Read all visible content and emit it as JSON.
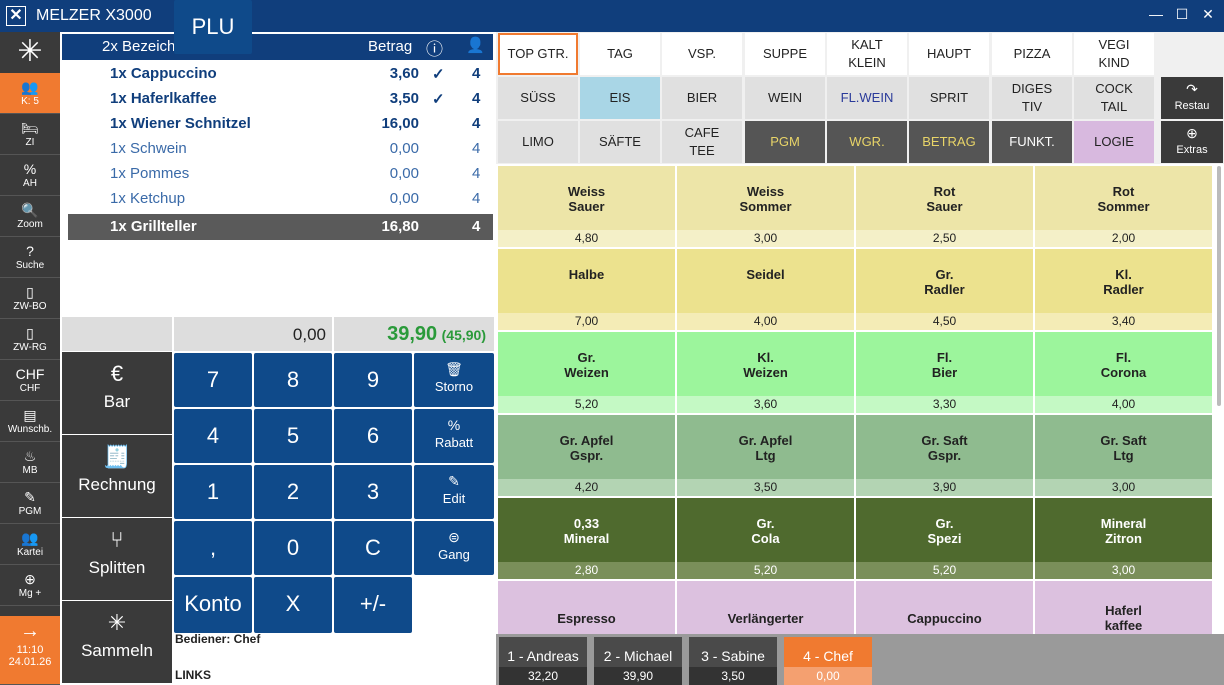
{
  "app": {
    "title": "MELZER X3000",
    "min": "—",
    "max": "☐",
    "close": "✕"
  },
  "sidebar": [
    {
      "icon": "👥",
      "label": "K: 5"
    },
    {
      "icon": "🛏",
      "label": "ZI"
    },
    {
      "icon": "%",
      "label": "AH"
    },
    {
      "icon": "🔍",
      "label": "Zoom"
    },
    {
      "icon": "?",
      "label": "Suche"
    },
    {
      "icon": "▯",
      "label": "ZW-BO"
    },
    {
      "icon": "▯",
      "label": "ZW-RG"
    },
    {
      "icon": "CHF",
      "label": "CHF"
    },
    {
      "icon": "▤",
      "label": "Wunschb."
    },
    {
      "icon": "♨",
      "label": "MB"
    },
    {
      "icon": "✎",
      "label": "PGM"
    },
    {
      "icon": "👥",
      "label": "Kartei"
    },
    {
      "icon": "⊕",
      "label": "Mg +"
    }
  ],
  "clock": {
    "time": "11:10",
    "date": "24.01.26",
    "icon": "→"
  },
  "order": {
    "header": {
      "name": "2x Bezeichnung",
      "amount": "Betrag",
      "info": "ⓘ",
      "person": "👤"
    },
    "rows": [
      {
        "name": "1x Cappuccino",
        "price": "3,60",
        "check": "✓",
        "seat": "4"
      },
      {
        "name": "1x Haferlkaffee",
        "price": "3,50",
        "check": "✓",
        "seat": "4"
      },
      {
        "name": "1x Wiener Schnitzel",
        "price": "16,00",
        "check": "",
        "seat": "4"
      },
      {
        "name": "1x Schwein",
        "price": "0,00",
        "check": "",
        "seat": "4"
      },
      {
        "name": "1x Pommes",
        "price": "0,00",
        "check": "",
        "seat": "4"
      },
      {
        "name": "1x Ketchup",
        "price": "0,00",
        "check": "",
        "seat": "4"
      },
      {
        "name": "1x Grillteller",
        "price": "16,80",
        "check": "",
        "seat": "4"
      }
    ]
  },
  "display": {
    "input": "0,00",
    "total": "39,90",
    "subtotal": "(45,90)"
  },
  "pay": [
    {
      "icon": "€",
      "label": "Bar"
    },
    {
      "icon": "🧾",
      "label": "Rechnung"
    },
    {
      "icon": "⑂",
      "label": "Splitten"
    },
    {
      "icon": "✳",
      "label": "Sammeln"
    }
  ],
  "keys": [
    "7",
    "8",
    "9",
    "4",
    "5",
    "6",
    "1",
    "2",
    "3",
    ",",
    "0",
    "C",
    "Konto",
    "X",
    "+/-",
    "PLU"
  ],
  "side_keys": [
    {
      "icon": "🗑",
      "label": "Storno"
    },
    {
      "icon": "%",
      "label": "Rabatt"
    },
    {
      "icon": "✎",
      "label": "Edit"
    },
    {
      "icon": "⊜",
      "label": "Gang"
    }
  ],
  "footer": {
    "bediener": "Bediener: Chef",
    "links": "LINKS"
  },
  "tabs": [
    [
      "TOP GTR.",
      "TAG",
      "VSP.",
      "SUPPE",
      "KALT\nKLEIN",
      "HAUPT",
      "PIZZA",
      "VEGI\nKIND"
    ],
    [
      "SÜSS",
      "EIS",
      "BIER",
      "WEIN",
      "FL.WEIN",
      "SPRIT",
      "DIGES\nTIV",
      "COCK\nTAIL"
    ],
    [
      "LIMO",
      "SÄFTE",
      "CAFE\nTEE",
      "PGM",
      "WGR.",
      "BETRAG",
      "FUNKT.",
      "LOGIE"
    ]
  ],
  "right_buttons": [
    {
      "icon": "↷",
      "label": "Restau"
    },
    {
      "icon": "⊕",
      "label": "Extras"
    }
  ],
  "products": [
    [
      {
        "n": "Weiss\nSauer",
        "p": "4,80"
      },
      {
        "n": "Weiss\nSommer",
        "p": "3,00"
      },
      {
        "n": "Rot\nSauer",
        "p": "2,50"
      },
      {
        "n": "Rot\nSommer",
        "p": "2,00"
      }
    ],
    [
      {
        "n": "Halbe",
        "p": "7,00"
      },
      {
        "n": "Seidel",
        "p": "4,00"
      },
      {
        "n": "Gr.\nRadler",
        "p": "4,50"
      },
      {
        "n": "Kl.\nRadler",
        "p": "3,40"
      }
    ],
    [
      {
        "n": "Gr.\nWeizen",
        "p": "5,20"
      },
      {
        "n": "Kl.\nWeizen",
        "p": "3,60"
      },
      {
        "n": "Fl.\nBier",
        "p": "3,30"
      },
      {
        "n": "Fl.\nCorona",
        "p": "4,00"
      }
    ],
    [
      {
        "n": "Gr. Apfel\nGspr.",
        "p": "4,20"
      },
      {
        "n": "Gr. Apfel\nLtg",
        "p": "3,50"
      },
      {
        "n": "Gr. Saft\nGspr.",
        "p": "3,90"
      },
      {
        "n": "Gr. Saft\nLtg",
        "p": "3,00"
      }
    ],
    [
      {
        "n": "0,33\nMineral",
        "p": "2,80"
      },
      {
        "n": "Gr.\nCola",
        "p": "5,20"
      },
      {
        "n": "Gr.\nSpezi",
        "p": "5,20"
      },
      {
        "n": "Mineral\nZitron",
        "p": "3,00"
      }
    ],
    [
      {
        "n": "Espresso",
        "p": ""
      },
      {
        "n": "Verlängerter",
        "p": ""
      },
      {
        "n": "Cappuccino",
        "p": ""
      },
      {
        "n": "Haferl\nkaffee",
        "p": ""
      }
    ]
  ],
  "staff": [
    {
      "name": "1 - Andreas",
      "value": "32,20"
    },
    {
      "name": "2 - Michael",
      "value": "39,90"
    },
    {
      "name": "3 - Sabine",
      "value": "3,50"
    },
    {
      "name": "4 - Chef",
      "value": "0,00"
    }
  ],
  "colors": {
    "primary": "#103e7c",
    "accent": "#f07a30",
    "total": "#2a9a3a"
  }
}
